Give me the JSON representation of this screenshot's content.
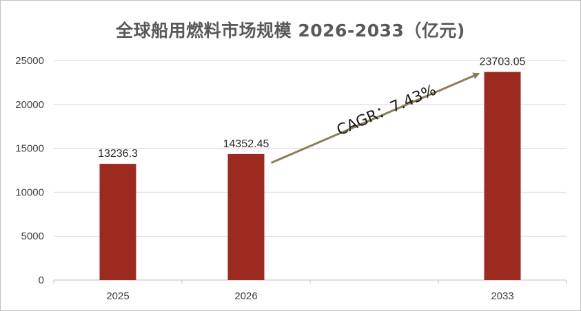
{
  "chart_data": {
    "type": "bar",
    "title": "全球船用燃料市场规模 2026-2033（亿元)",
    "categories": [
      "2025",
      "2026",
      "",
      "2033"
    ],
    "values": [
      13236.3,
      14352.45,
      null,
      23703.05
    ],
    "data_labels": [
      "13236.3",
      "14352.45",
      "",
      "23703.05"
    ],
    "ylim": [
      0,
      25000
    ],
    "yticks": [
      "0",
      "5000",
      "10000",
      "15000",
      "20000",
      "25000"
    ],
    "grid": true,
    "bar_color": "#9C2A1E",
    "annotation": {
      "text": "CAGR：7.43%",
      "from_category": "2026",
      "to_category": "2033",
      "arrow_color": "#8B7D5C"
    }
  }
}
